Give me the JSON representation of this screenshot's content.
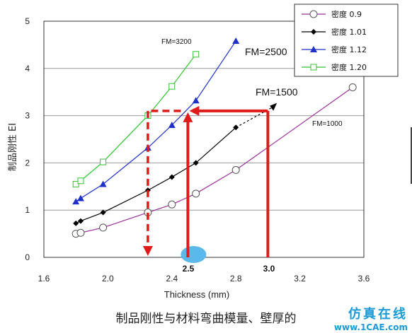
{
  "chart_data": {
    "type": "line",
    "xlabel": "Thickness (mm)",
    "ylabel": "制品刚性  EI",
    "xlim": [
      1.6,
      3.6
    ],
    "ylim": [
      0,
      5
    ],
    "xticks": [
      "1.6",
      "2.0",
      "2.4",
      "2.8",
      "3.2",
      "3.6"
    ],
    "yticks": [
      "0",
      "1",
      "2",
      "3",
      "4",
      "5"
    ],
    "grid": "horizontal",
    "legend_position": "top-right",
    "series": [
      {
        "name": "密度  0.9",
        "color": "#9b2f9b",
        "marker": "circle-open",
        "x": [
          1.8,
          1.83,
          1.97,
          2.25,
          2.4,
          2.55,
          2.8,
          3.53
        ],
        "y": [
          0.5,
          0.52,
          0.63,
          0.95,
          1.12,
          1.35,
          1.85,
          3.6
        ]
      },
      {
        "name": "密度  1.01",
        "color": "#000000",
        "marker": "diamond",
        "x": [
          1.8,
          1.83,
          1.97,
          2.25,
          2.4,
          2.55,
          2.8
        ],
        "y": [
          0.72,
          0.77,
          0.95,
          1.42,
          1.7,
          2.0,
          2.75
        ]
      },
      {
        "name": "密度  1.12",
        "color": "#1f31c8",
        "marker": "triangle",
        "x": [
          1.8,
          1.83,
          1.97,
          2.25,
          2.4,
          2.55,
          2.8
        ],
        "y": [
          1.18,
          1.25,
          1.55,
          2.32,
          2.8,
          3.32,
          4.58
        ]
      },
      {
        "name": "密度  1.20",
        "color": "#2fc42f",
        "marker": "square-open",
        "x": [
          1.8,
          1.83,
          1.97,
          2.25,
          2.4,
          2.55
        ],
        "y": [
          1.55,
          1.62,
          2.02,
          3.0,
          3.62,
          4.3
        ]
      }
    ],
    "annotations": {
      "fm_labels": [
        "FM=3200",
        "FM=2500",
        "FM=1500",
        "FM=1000"
      ],
      "marked_x": [
        "2.5",
        "3.0"
      ]
    }
  },
  "caption": "制品刚性与材料弯曲模量、壁厚的",
  "watermark": {
    "line1": "仿真在线",
    "line2": "www.1CAE.com"
  }
}
